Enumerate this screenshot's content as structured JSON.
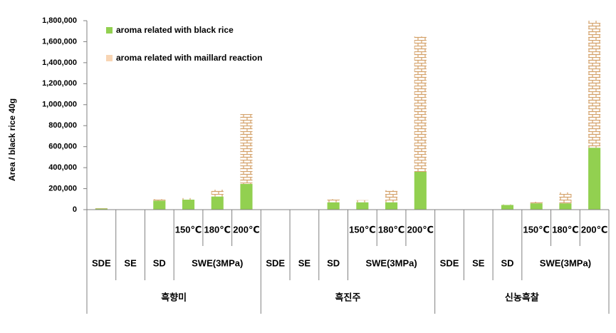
{
  "chart_data": {
    "type": "bar",
    "stacked": true,
    "y_label": "Area / black rice 40g",
    "categories": [
      null,
      null,
      null,
      "150℃",
      "180℃",
      "200℃",
      null,
      null,
      null,
      "150℃",
      "180℃",
      "200℃",
      null,
      null,
      null,
      "150℃",
      "180℃",
      "200℃"
    ],
    "methods": [
      "SDE",
      "SE",
      "SD",
      "SWE(3MPa)"
    ],
    "groups": [
      "흑향미",
      "흑진주",
      "신농흑찰"
    ],
    "series": [
      {
        "name": "aroma related with black rice",
        "color": "#92d050",
        "pattern": false,
        "values": [
          10000,
          2000,
          85000,
          95000,
          125000,
          245000,
          2000,
          2000,
          70000,
          70000,
          70000,
          360000,
          1000,
          1000,
          45000,
          60000,
          60000,
          590000
        ]
      },
      {
        "name": "aroma related with maillard reaction",
        "color": "#d4a26a",
        "legend_color": "#f8d5b4",
        "pattern": true,
        "values": [
          3000,
          0,
          15000,
          15000,
          65000,
          665000,
          0,
          0,
          30000,
          20000,
          115000,
          1290000,
          0,
          0,
          5000,
          15000,
          105000,
          1210000
        ]
      }
    ],
    "ylim": [
      0,
      1800000
    ],
    "yticks": [
      0,
      {
        "value": 200000,
        "label": "200,000"
      },
      {
        "value": 400000,
        "label": "400,000"
      },
      {
        "value": 600000,
        "label": "600,000"
      },
      {
        "value": 800000,
        "label": "800,000"
      },
      {
        "value": 1000000,
        "label": "1,000,000"
      },
      {
        "value": 1200000,
        "label": "1,200,000"
      },
      {
        "value": 1400000,
        "label": "1,400,000"
      },
      {
        "value": 1600000,
        "label": "1,600,000"
      },
      {
        "value": 1800000,
        "label": "1,800,000"
      }
    ],
    "legend": "top-left",
    "grid": false
  }
}
